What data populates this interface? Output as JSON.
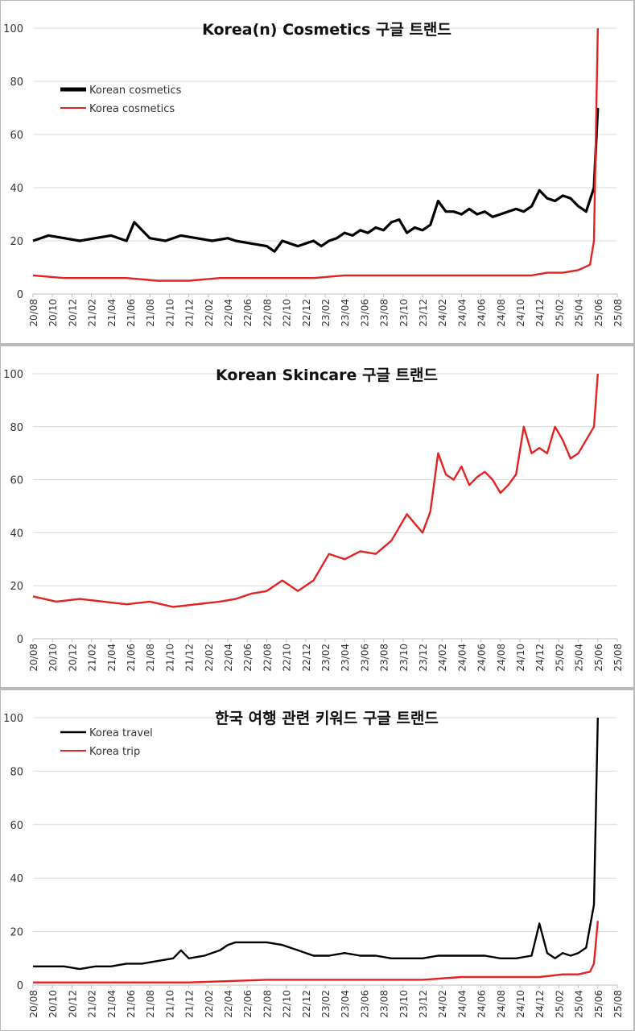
{
  "x_ticks": [
    "20/08",
    "20/10",
    "20/12",
    "21/02",
    "21/04",
    "21/06",
    "21/08",
    "21/10",
    "21/12",
    "22/02",
    "22/04",
    "22/06",
    "22/08",
    "22/10",
    "22/12",
    "23/02",
    "23/04",
    "23/06",
    "23/08",
    "23/10",
    "23/12",
    "24/02",
    "24/04",
    "24/06",
    "24/08",
    "24/10",
    "24/12",
    "25/02",
    "25/04",
    "25/06",
    "25/08"
  ],
  "y_ticks": [
    "0",
    "20",
    "40",
    "60",
    "80",
    "100"
  ],
  "colors": {
    "black": "#000000",
    "red": "#e32222",
    "grid": "#d9d9d9"
  },
  "chart_data": [
    {
      "type": "line",
      "title": "Korea(n) Cosmetics 구글 트랜드",
      "ylim": [
        0,
        100
      ],
      "legend_position": "top-left",
      "grid": true,
      "series": [
        {
          "name": "Korean cosmetics",
          "color": "#000000",
          "points": [
            [
              0,
              20
            ],
            [
              2,
              22
            ],
            [
              4,
              21
            ],
            [
              6,
              20
            ],
            [
              8,
              21
            ],
            [
              10,
              22
            ],
            [
              12,
              20
            ],
            [
              13,
              27
            ],
            [
              15,
              21
            ],
            [
              17,
              20
            ],
            [
              19,
              22
            ],
            [
              21,
              21
            ],
            [
              23,
              20
            ],
            [
              25,
              21
            ],
            [
              26,
              20
            ],
            [
              28,
              19
            ],
            [
              30,
              18
            ],
            [
              31,
              16
            ],
            [
              32,
              20
            ],
            [
              33,
              19
            ],
            [
              34,
              18
            ],
            [
              35,
              19
            ],
            [
              36,
              20
            ],
            [
              37,
              18
            ],
            [
              38,
              20
            ],
            [
              39,
              21
            ],
            [
              40,
              23
            ],
            [
              41,
              22
            ],
            [
              42,
              24
            ],
            [
              43,
              23
            ],
            [
              44,
              25
            ],
            [
              45,
              24
            ],
            [
              46,
              27
            ],
            [
              47,
              28
            ],
            [
              48,
              23
            ],
            [
              49,
              25
            ],
            [
              50,
              24
            ],
            [
              51,
              26
            ],
            [
              52,
              35
            ],
            [
              53,
              31
            ],
            [
              54,
              31
            ],
            [
              55,
              30
            ],
            [
              56,
              32
            ],
            [
              57,
              30
            ],
            [
              58,
              31
            ],
            [
              59,
              29
            ],
            [
              60,
              30
            ],
            [
              61,
              31
            ],
            [
              62,
              32
            ],
            [
              63,
              31
            ],
            [
              64,
              33
            ],
            [
              65,
              39
            ],
            [
              66,
              36
            ],
            [
              67,
              35
            ],
            [
              68,
              37
            ],
            [
              69,
              36
            ],
            [
              70,
              33
            ],
            [
              71,
              31
            ],
            [
              72,
              40
            ],
            [
              72.5,
              70
            ]
          ]
        },
        {
          "name": "Korea cosmetics",
          "color": "#e32222",
          "points": [
            [
              0,
              7
            ],
            [
              4,
              6
            ],
            [
              8,
              6
            ],
            [
              12,
              6
            ],
            [
              16,
              5
            ],
            [
              20,
              5
            ],
            [
              24,
              6
            ],
            [
              26,
              6
            ],
            [
              28,
              6
            ],
            [
              32,
              6
            ],
            [
              36,
              6
            ],
            [
              40,
              7
            ],
            [
              44,
              7
            ],
            [
              48,
              7
            ],
            [
              52,
              7
            ],
            [
              56,
              7
            ],
            [
              60,
              7
            ],
            [
              64,
              7
            ],
            [
              66,
              8
            ],
            [
              68,
              8
            ],
            [
              70,
              9
            ],
            [
              71.5,
              11
            ],
            [
              72,
              20
            ],
            [
              72.5,
              100
            ]
          ]
        }
      ]
    },
    {
      "type": "line",
      "title": "Korean Skincare 구글 트랜드",
      "ylim": [
        0,
        100
      ],
      "grid": true,
      "series": [
        {
          "name": "Korean Skincare",
          "color": "#e32222",
          "points": [
            [
              0,
              16
            ],
            [
              3,
              14
            ],
            [
              6,
              15
            ],
            [
              9,
              14
            ],
            [
              12,
              13
            ],
            [
              15,
              14
            ],
            [
              18,
              12
            ],
            [
              21,
              13
            ],
            [
              24,
              14
            ],
            [
              26,
              15
            ],
            [
              28,
              17
            ],
            [
              30,
              18
            ],
            [
              32,
              22
            ],
            [
              34,
              18
            ],
            [
              36,
              22
            ],
            [
              38,
              32
            ],
            [
              40,
              30
            ],
            [
              42,
              33
            ],
            [
              44,
              32
            ],
            [
              46,
              37
            ],
            [
              48,
              47
            ],
            [
              50,
              40
            ],
            [
              51,
              48
            ],
            [
              52,
              70
            ],
            [
              53,
              62
            ],
            [
              54,
              60
            ],
            [
              55,
              65
            ],
            [
              56,
              58
            ],
            [
              57,
              61
            ],
            [
              58,
              63
            ],
            [
              59,
              60
            ],
            [
              60,
              55
            ],
            [
              61,
              58
            ],
            [
              62,
              62
            ],
            [
              63,
              80
            ],
            [
              64,
              70
            ],
            [
              65,
              72
            ],
            [
              66,
              70
            ],
            [
              67,
              80
            ],
            [
              68,
              75
            ],
            [
              69,
              68
            ],
            [
              70,
              70
            ],
            [
              71,
              75
            ],
            [
              72,
              80
            ],
            [
              72.5,
              100
            ]
          ]
        }
      ]
    },
    {
      "type": "line",
      "title": "한국 여행 관련 키워드 구글 트랜드",
      "ylim": [
        0,
        100
      ],
      "legend_position": "top-left",
      "grid": true,
      "series": [
        {
          "name": "Korea travel",
          "color": "#000000",
          "points": [
            [
              0,
              7
            ],
            [
              4,
              7
            ],
            [
              6,
              6
            ],
            [
              8,
              7
            ],
            [
              10,
              7
            ],
            [
              12,
              8
            ],
            [
              14,
              8
            ],
            [
              16,
              9
            ],
            [
              18,
              10
            ],
            [
              19,
              13
            ],
            [
              20,
              10
            ],
            [
              22,
              11
            ],
            [
              24,
              13
            ],
            [
              25,
              15
            ],
            [
              26,
              16
            ],
            [
              28,
              16
            ],
            [
              30,
              16
            ],
            [
              32,
              15
            ],
            [
              34,
              13
            ],
            [
              36,
              11
            ],
            [
              38,
              11
            ],
            [
              40,
              12
            ],
            [
              42,
              11
            ],
            [
              44,
              11
            ],
            [
              46,
              10
            ],
            [
              48,
              10
            ],
            [
              50,
              10
            ],
            [
              52,
              11
            ],
            [
              54,
              11
            ],
            [
              56,
              11
            ],
            [
              58,
              11
            ],
            [
              60,
              10
            ],
            [
              62,
              10
            ],
            [
              64,
              11
            ],
            [
              65,
              23
            ],
            [
              66,
              12
            ],
            [
              67,
              10
            ],
            [
              68,
              12
            ],
            [
              69,
              11
            ],
            [
              70,
              12
            ],
            [
              71,
              14
            ],
            [
              72,
              30
            ],
            [
              72.5,
              100
            ]
          ]
        },
        {
          "name": "Korea trip",
          "color": "#e32222",
          "points": [
            [
              0,
              1
            ],
            [
              10,
              1
            ],
            [
              20,
              1
            ],
            [
              30,
              2
            ],
            [
              40,
              2
            ],
            [
              50,
              2
            ],
            [
              55,
              3
            ],
            [
              60,
              3
            ],
            [
              65,
              3
            ],
            [
              68,
              4
            ],
            [
              70,
              4
            ],
            [
              71.5,
              5
            ],
            [
              72,
              8
            ],
            [
              72.5,
              24
            ]
          ]
        }
      ]
    }
  ]
}
